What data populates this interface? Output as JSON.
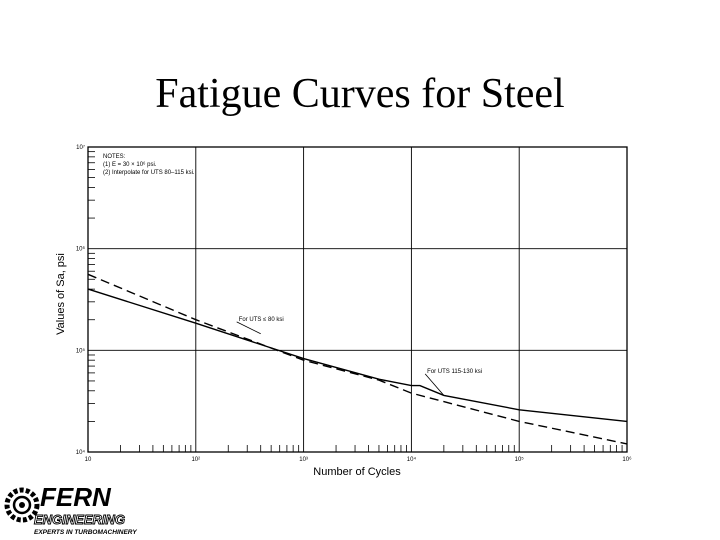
{
  "slide": {
    "title": "Fatigue Curves for Steel"
  },
  "chart_data": {
    "type": "line",
    "xlabel": "Number of Cycles",
    "ylabel": "Values of Sa, psi",
    "xscale": "log",
    "yscale": "log",
    "xlim": [
      10,
      1000000
    ],
    "ylim": [
      10000,
      10000000
    ],
    "grid": true,
    "x_tick_labels": [
      "10",
      "10²",
      "10³",
      "10⁴",
      "10⁵",
      "10⁶"
    ],
    "y_tick_labels": [
      "10⁴",
      "10⁵",
      "10⁶",
      "10⁷"
    ],
    "notes": [
      "NOTES:",
      "(1) E = 30 × 10⁶ psi.",
      "(2) Interpolate for UTS 80–115 ksi."
    ],
    "series": [
      {
        "name": "",
        "style": "solid",
        "points": [
          [
            10,
            400000
          ],
          [
            100,
            185000
          ],
          [
            1000,
            83000
          ],
          [
            5000,
            52000
          ],
          [
            10000,
            45000
          ],
          [
            12000,
            45000
          ],
          [
            20000,
            36000
          ],
          [
            100000,
            26000
          ],
          [
            1000000,
            20000
          ]
        ]
      },
      {
        "name": "",
        "style": "dashed",
        "points": [
          [
            10,
            560000
          ],
          [
            100,
            200000
          ],
          [
            1000,
            80000
          ],
          [
            5000,
            51000
          ],
          [
            10000,
            38000
          ],
          [
            100000,
            20000
          ],
          [
            1000000,
            12000
          ]
        ]
      }
    ],
    "annotations": [
      {
        "text": "For UTS ≤ 80 ksi",
        "x": 250,
        "y": 195000
      },
      {
        "text": "For UTS 115-130 ksi",
        "x": 14000,
        "y": 60000
      }
    ]
  },
  "logo": {
    "brand": "FERN",
    "sub1": "ENGINEERING",
    "sub2": "EXPERTS IN TURBOMACHINERY"
  }
}
